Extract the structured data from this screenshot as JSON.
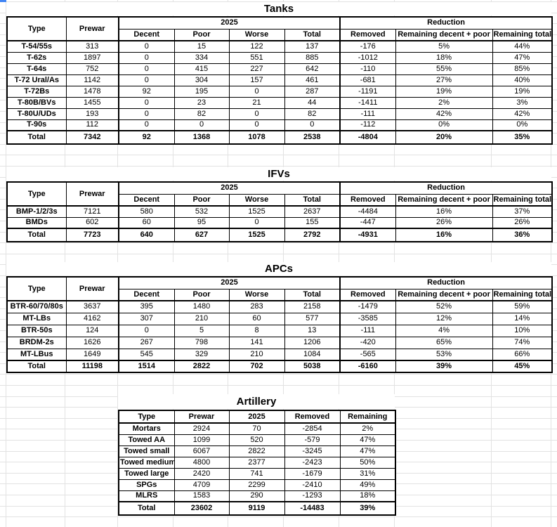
{
  "colors": {
    "selection_blue": "#4285f4",
    "gridline": "#e2e2e2",
    "table_border": "#000000"
  },
  "tables": [
    {
      "id": "tanks",
      "title": "Tanks",
      "group": {
        "year": "2025",
        "reduction": "Reduction"
      },
      "columns": [
        "Type",
        "Prewar",
        "Decent",
        "Poor",
        "Worse",
        "Total",
        "Removed",
        "Remaining decent + poor",
        "Remaining total"
      ],
      "rows": [
        [
          "T-54/55s",
          "313",
          "0",
          "15",
          "122",
          "137",
          "-176",
          "5%",
          "44%"
        ],
        [
          "T-62s",
          "1897",
          "0",
          "334",
          "551",
          "885",
          "-1012",
          "18%",
          "47%"
        ],
        [
          "T-64s",
          "752",
          "0",
          "415",
          "227",
          "642",
          "-110",
          "55%",
          "85%"
        ],
        [
          "T-72 Ural/As",
          "1142",
          "0",
          "304",
          "157",
          "461",
          "-681",
          "27%",
          "40%"
        ],
        [
          "T-72Bs",
          "1478",
          "92",
          "195",
          "0",
          "287",
          "-1191",
          "19%",
          "19%"
        ],
        [
          "T-80B/BVs",
          "1455",
          "0",
          "23",
          "21",
          "44",
          "-1411",
          "2%",
          "3%"
        ],
        [
          "T-80U/UDs",
          "193",
          "0",
          "82",
          "0",
          "82",
          "-111",
          "42%",
          "42%"
        ],
        [
          "T-90s",
          "112",
          "0",
          "0",
          "0",
          "0",
          "-112",
          "0%",
          "0%"
        ]
      ],
      "total": [
        "Total",
        "7342",
        "92",
        "1368",
        "1078",
        "2538",
        "-4804",
        "20%",
        "35%"
      ]
    },
    {
      "id": "ifvs",
      "title": "IFVs",
      "group": {
        "year": "2025",
        "reduction": "Reduction"
      },
      "columns": [
        "Type",
        "Prewar",
        "Decent",
        "Poor",
        "Worse",
        "Total",
        "Removed",
        "Remaining decent + poor",
        "Remaining total"
      ],
      "rows": [
        [
          "BMP-1/2/3s",
          "7121",
          "580",
          "532",
          "1525",
          "2637",
          "-4484",
          "16%",
          "37%"
        ],
        [
          "BMDs",
          "602",
          "60",
          "95",
          "0",
          "155",
          "-447",
          "26%",
          "26%"
        ]
      ],
      "total": [
        "Total",
        "7723",
        "640",
        "627",
        "1525",
        "2792",
        "-4931",
        "16%",
        "36%"
      ]
    },
    {
      "id": "apcs",
      "title": "APCs",
      "group": {
        "year": "2025",
        "reduction": "Reduction"
      },
      "columns": [
        "Type",
        "Prewar",
        "Decent",
        "Poor",
        "Worse",
        "Total",
        "Removed",
        "Remaining decent + poor",
        "Remaining total"
      ],
      "rows": [
        [
          "BTR-60/70/80s",
          "3637",
          "395",
          "1480",
          "283",
          "2158",
          "-1479",
          "52%",
          "59%"
        ],
        [
          "MT-LBs",
          "4162",
          "307",
          "210",
          "60",
          "577",
          "-3585",
          "12%",
          "14%"
        ],
        [
          "BTR-50s",
          "124",
          "0",
          "5",
          "8",
          "13",
          "-111",
          "4%",
          "10%"
        ],
        [
          "BRDM-2s",
          "1626",
          "267",
          "798",
          "141",
          "1206",
          "-420",
          "65%",
          "74%"
        ],
        [
          "MT-LBus",
          "1649",
          "545",
          "329",
          "210",
          "1084",
          "-565",
          "53%",
          "66%"
        ]
      ],
      "total": [
        "Total",
        "11198",
        "1514",
        "2822",
        "702",
        "5038",
        "-6160",
        "39%",
        "45%"
      ]
    },
    {
      "id": "artillery",
      "title": "Artillery",
      "columns": [
        "Type",
        "Prewar",
        "2025",
        "Removed",
        "Remaining"
      ],
      "rows": [
        [
          "Mortars",
          "2924",
          "70",
          "-2854",
          "2%"
        ],
        [
          "Towed AA",
          "1099",
          "520",
          "-579",
          "47%"
        ],
        [
          "Towed small",
          "6067",
          "2822",
          "-3245",
          "47%"
        ],
        [
          "Towed medium",
          "4800",
          "2377",
          "-2423",
          "50%"
        ],
        [
          "Towed large",
          "2420",
          "741",
          "-1679",
          "31%"
        ],
        [
          "SPGs",
          "4709",
          "2299",
          "-2410",
          "49%"
        ],
        [
          "MLRS",
          "1583",
          "290",
          "-1293",
          "18%"
        ]
      ],
      "total": [
        "Total",
        "23602",
        "9119",
        "-14483",
        "39%"
      ]
    }
  ]
}
